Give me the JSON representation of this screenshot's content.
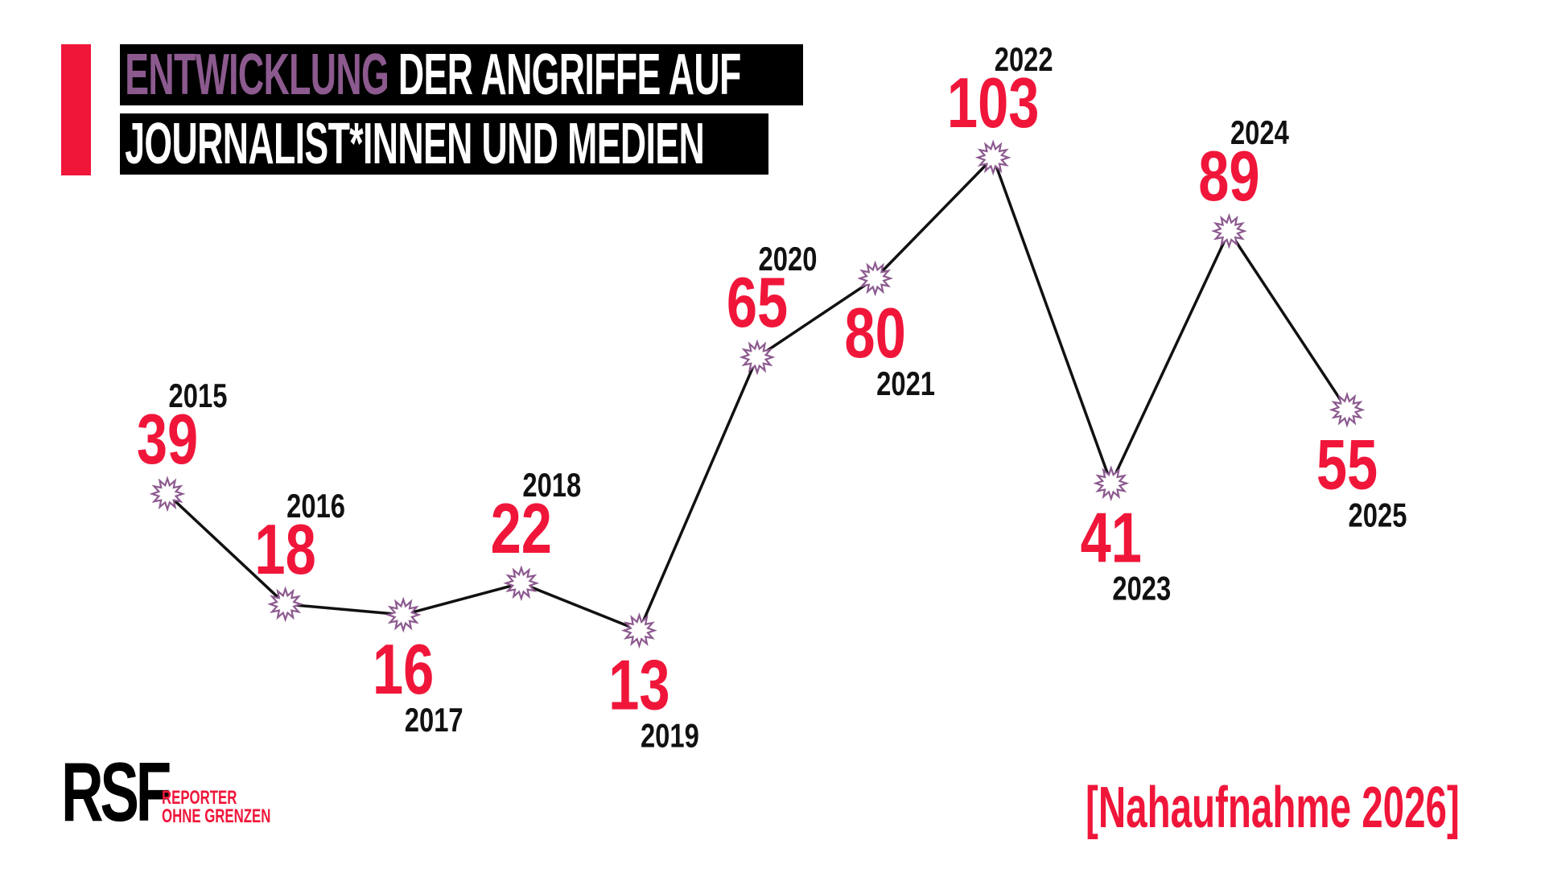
{
  "title": {
    "highlight": "ENTWICKLUNG",
    "line1_rest": "DER ANGRIFFE AUF",
    "line2": "JOURNALIST*INNEN UND MEDIEN"
  },
  "colors": {
    "accent_red": "#f0163a",
    "purple": "#8c5a8f",
    "line": "#111111"
  },
  "chart_data": {
    "type": "line",
    "title": "ENTWICKLUNG DER ANGRIFFE AUF JOURNALIST*INNEN UND MEDIEN",
    "x": [
      "2015",
      "2016",
      "2017",
      "2018",
      "2019",
      "2020",
      "2021",
      "2022",
      "2023",
      "2024",
      "2025"
    ],
    "values": [
      39,
      18,
      16,
      22,
      13,
      65,
      80,
      103,
      41,
      89,
      55
    ],
    "label_side": [
      "above",
      "above",
      "below",
      "above",
      "below",
      "above",
      "below",
      "above",
      "below",
      "above",
      "below"
    ],
    "marker": "starburst",
    "axes_visible": false,
    "grid": false
  },
  "footer": {
    "logo": "RSF",
    "logo_sub1": "REPORTER",
    "logo_sub2": "OHNE GRENZEN",
    "source": "[Nahaufnahme 2026]"
  }
}
